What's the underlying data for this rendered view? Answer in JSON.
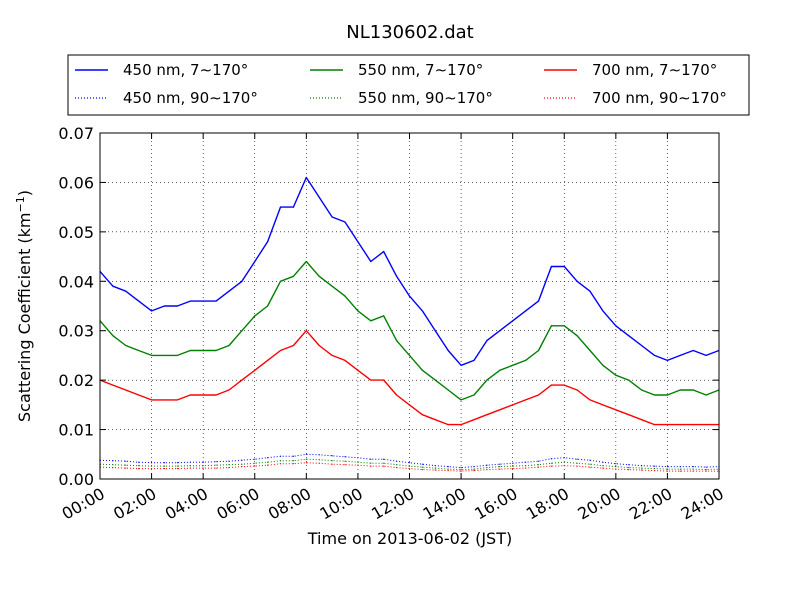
{
  "chart_data": {
    "type": "line",
    "title": "NL130602.dat",
    "xlabel": "Time on 2013-06-02 (JST)",
    "ylabel_main": "Scattering Coefficient (km",
    "ylabel_sup": "−1",
    "ylabel_close": ")",
    "xlim": [
      0,
      24
    ],
    "ylim": [
      0,
      0.07
    ],
    "grid": true,
    "legend_position": "top",
    "x_ticks": [
      {
        "value": 0,
        "label": "00:00"
      },
      {
        "value": 2,
        "label": "02:00"
      },
      {
        "value": 4,
        "label": "04:00"
      },
      {
        "value": 6,
        "label": "06:00"
      },
      {
        "value": 8,
        "label": "08:00"
      },
      {
        "value": 10,
        "label": "10:00"
      },
      {
        "value": 12,
        "label": "12:00"
      },
      {
        "value": 14,
        "label": "14:00"
      },
      {
        "value": 16,
        "label": "16:00"
      },
      {
        "value": 18,
        "label": "18:00"
      },
      {
        "value": 20,
        "label": "20:00"
      },
      {
        "value": 22,
        "label": "22:00"
      },
      {
        "value": 24,
        "label": "24:00"
      }
    ],
    "y_ticks": [
      {
        "value": 0.0,
        "label": "0.00"
      },
      {
        "value": 0.01,
        "label": "0.01"
      },
      {
        "value": 0.02,
        "label": "0.02"
      },
      {
        "value": 0.03,
        "label": "0.03"
      },
      {
        "value": 0.04,
        "label": "0.04"
      },
      {
        "value": 0.05,
        "label": "0.05"
      },
      {
        "value": 0.06,
        "label": "0.06"
      },
      {
        "value": 0.07,
        "label": "0.07"
      }
    ],
    "x": [
      0,
      0.5,
      1,
      1.5,
      2,
      2.5,
      3,
      3.5,
      4,
      4.5,
      5,
      5.5,
      6,
      6.5,
      7,
      7.5,
      8,
      8.5,
      9,
      9.5,
      10,
      10.5,
      11,
      11.5,
      12,
      12.5,
      13,
      13.5,
      14,
      14.5,
      15,
      15.5,
      16,
      16.5,
      17,
      17.5,
      18,
      18.5,
      19,
      19.5,
      20,
      20.5,
      21,
      21.5,
      22,
      22.5,
      23,
      23.5,
      24
    ],
    "series": [
      {
        "name": "450 nm, 7∼170°",
        "color": "#0000ff",
        "style": "solid",
        "values": [
          0.042,
          0.039,
          0.038,
          0.036,
          0.034,
          0.035,
          0.035,
          0.036,
          0.036,
          0.036,
          0.038,
          0.04,
          0.044,
          0.048,
          0.055,
          0.055,
          0.061,
          0.057,
          0.053,
          0.052,
          0.048,
          0.044,
          0.046,
          0.041,
          0.037,
          0.034,
          0.03,
          0.026,
          0.023,
          0.024,
          0.028,
          0.03,
          0.032,
          0.034,
          0.036,
          0.043,
          0.043,
          0.04,
          0.038,
          0.034,
          0.031,
          0.029,
          0.027,
          0.025,
          0.024,
          0.025,
          0.026,
          0.025,
          0.026
        ]
      },
      {
        "name": "450 nm, 90∼170°",
        "color": "#0000ff",
        "style": "dotted",
        "values": [
          0.0038,
          0.0037,
          0.0036,
          0.0034,
          0.0033,
          0.0033,
          0.0033,
          0.0034,
          0.0034,
          0.0035,
          0.0036,
          0.0038,
          0.004,
          0.0043,
          0.0046,
          0.0046,
          0.005,
          0.0049,
          0.0047,
          0.0045,
          0.0043,
          0.004,
          0.004,
          0.0036,
          0.0033,
          0.003,
          0.0027,
          0.0025,
          0.0023,
          0.0025,
          0.0028,
          0.003,
          0.0032,
          0.0034,
          0.0036,
          0.0041,
          0.0043,
          0.004,
          0.0038,
          0.0034,
          0.0031,
          0.0029,
          0.0027,
          0.0026,
          0.0025,
          0.0025,
          0.0025,
          0.0024,
          0.0025
        ]
      },
      {
        "name": "550 nm, 7∼170°",
        "color": "#008000",
        "style": "solid",
        "values": [
          0.032,
          0.029,
          0.027,
          0.026,
          0.025,
          0.025,
          0.025,
          0.026,
          0.026,
          0.026,
          0.027,
          0.03,
          0.033,
          0.035,
          0.04,
          0.041,
          0.044,
          0.041,
          0.039,
          0.037,
          0.034,
          0.032,
          0.033,
          0.028,
          0.025,
          0.022,
          0.02,
          0.018,
          0.016,
          0.017,
          0.02,
          0.022,
          0.023,
          0.024,
          0.026,
          0.031,
          0.031,
          0.029,
          0.026,
          0.023,
          0.021,
          0.02,
          0.018,
          0.017,
          0.017,
          0.018,
          0.018,
          0.017,
          0.018
        ]
      },
      {
        "name": "550 nm, 90∼170°",
        "color": "#008000",
        "style": "dotted",
        "values": [
          0.003,
          0.0029,
          0.0028,
          0.0027,
          0.0026,
          0.0026,
          0.0026,
          0.0027,
          0.0027,
          0.0028,
          0.0029,
          0.003,
          0.0032,
          0.0034,
          0.0037,
          0.0037,
          0.004,
          0.0039,
          0.0037,
          0.0036,
          0.0034,
          0.0032,
          0.0032,
          0.0029,
          0.0026,
          0.0024,
          0.0022,
          0.002,
          0.0019,
          0.002,
          0.0023,
          0.0025,
          0.0026,
          0.0027,
          0.0029,
          0.0032,
          0.0034,
          0.0032,
          0.003,
          0.0027,
          0.0025,
          0.0023,
          0.0022,
          0.0021,
          0.002,
          0.002,
          0.002,
          0.0019,
          0.002
        ]
      },
      {
        "name": "700 nm, 7∼170°",
        "color": "#ff0000",
        "style": "solid",
        "values": [
          0.02,
          0.019,
          0.018,
          0.017,
          0.016,
          0.016,
          0.016,
          0.017,
          0.017,
          0.017,
          0.018,
          0.02,
          0.022,
          0.024,
          0.026,
          0.027,
          0.03,
          0.027,
          0.025,
          0.024,
          0.022,
          0.02,
          0.02,
          0.017,
          0.015,
          0.013,
          0.012,
          0.011,
          0.011,
          0.012,
          0.013,
          0.014,
          0.015,
          0.016,
          0.017,
          0.019,
          0.019,
          0.018,
          0.016,
          0.015,
          0.014,
          0.013,
          0.012,
          0.011,
          0.011,
          0.011,
          0.011,
          0.011,
          0.011
        ]
      },
      {
        "name": "700 nm, 90∼170°",
        "color": "#ff0000",
        "style": "dotted",
        "values": [
          0.0024,
          0.0023,
          0.0022,
          0.0021,
          0.0021,
          0.0021,
          0.0021,
          0.0022,
          0.0022,
          0.0022,
          0.0023,
          0.0025,
          0.0026,
          0.0028,
          0.0031,
          0.0031,
          0.0033,
          0.0032,
          0.003,
          0.0029,
          0.0028,
          0.0026,
          0.0026,
          0.0023,
          0.0021,
          0.0019,
          0.0018,
          0.0017,
          0.0016,
          0.0017,
          0.0019,
          0.002,
          0.0021,
          0.0022,
          0.0024,
          0.0026,
          0.0027,
          0.0026,
          0.0024,
          0.0022,
          0.002,
          0.0019,
          0.0018,
          0.0017,
          0.0016,
          0.0016,
          0.0016,
          0.0016,
          0.0016
        ]
      }
    ]
  }
}
